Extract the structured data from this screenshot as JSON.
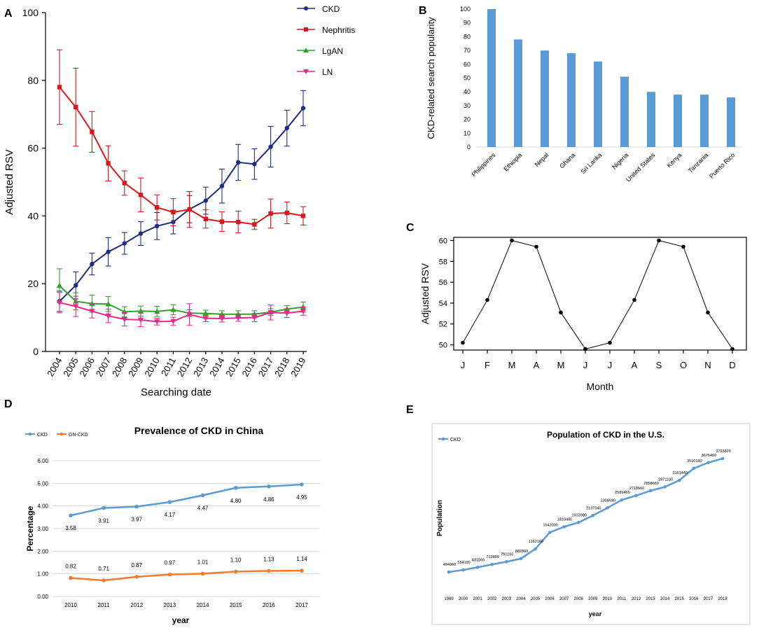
{
  "chart_data": [
    {
      "panel": "A",
      "type": "line",
      "title": "",
      "xlabel": "Searching date",
      "ylabel": "Adjusted RSV",
      "ylim": [
        0,
        100
      ],
      "yticks": [
        "0",
        "20",
        "40",
        "60",
        "80",
        "100"
      ],
      "categories": [
        "2004",
        "2005",
        "2006",
        "2007",
        "2008",
        "2009",
        "2010",
        "2011",
        "2012",
        "2013",
        "2014",
        "2015",
        "2016",
        "2017",
        "2018",
        "2019"
      ],
      "series": [
        {
          "name": "CKD",
          "color": "#1f2d80",
          "marker": "circle",
          "values": [
            14.8,
            19.5,
            25.8,
            29.4,
            31.9,
            34.8,
            37.0,
            38.2,
            42.0,
            44.5,
            48.8,
            55.8,
            55.3,
            60.4,
            65.9,
            71.8
          ],
          "errors": [
            3,
            4,
            3.2,
            4.2,
            3.2,
            3.5,
            4,
            3.5,
            4,
            4,
            5,
            5.3,
            4.5,
            6,
            5.3,
            5.2
          ]
        },
        {
          "name": "Nephritis",
          "color": "#d7191c",
          "marker": "square",
          "values": [
            78.0,
            72.1,
            64.8,
            55.5,
            49.7,
            46.2,
            42.5,
            41.1,
            41.9,
            39.1,
            38.3,
            38.2,
            37.5,
            40.7,
            40.9,
            40.0
          ],
          "errors": [
            11,
            11.5,
            6,
            5.2,
            3.6,
            5,
            3.7,
            4,
            5.3,
            2.7,
            2.9,
            3.2,
            1.5,
            4.3,
            3.2,
            2.7
          ]
        },
        {
          "name": "LgAN",
          "color": "#33a02c",
          "marker": "triangle-up",
          "values": [
            19.4,
            14.8,
            14.1,
            14.0,
            11.7,
            11.9,
            11.8,
            12.3,
            11.3,
            11.2,
            11.0,
            11.0,
            11.0,
            11.6,
            12.5,
            13.1
          ],
          "errors": [
            5,
            2.5,
            2.5,
            2.2,
            1.5,
            1.5,
            1.5,
            1.5,
            1,
            1,
            1,
            1,
            1,
            1,
            1,
            1.5
          ]
        },
        {
          "name": "LN",
          "color": "#e7298a",
          "marker": "triangle-down",
          "values": [
            14.4,
            13.3,
            11.9,
            10.5,
            9.5,
            9.3,
            8.8,
            8.9,
            10.9,
            9.8,
            9.7,
            9.9,
            10.0,
            11.5,
            11.3,
            11.9
          ],
          "errors": [
            3,
            3,
            2,
            2,
            2,
            2,
            1,
            1.2,
            3.2,
            1,
            1,
            1,
            1.2,
            2.2,
            1.3,
            1.2
          ]
        }
      ]
    },
    {
      "panel": "B",
      "type": "bar",
      "title": "",
      "xlabel": "",
      "ylabel": "CKD-related search popularity",
      "ylim": [
        0,
        100
      ],
      "yticks": [
        "0",
        "10",
        "20",
        "30",
        "40",
        "50",
        "60",
        "70",
        "80",
        "90",
        "100"
      ],
      "categories": [
        "Philippines",
        "Ethiopia",
        "Nepal",
        "Ghana",
        "Sri Lanka",
        "Nigeria",
        "United States",
        "Kenya",
        "Tanzania",
        "Puerto Rico"
      ],
      "values": [
        100,
        78,
        70,
        68,
        62,
        51,
        40,
        38,
        38,
        36
      ],
      "color": "#5b9bd5"
    },
    {
      "panel": "C",
      "type": "line",
      "title": "",
      "xlabel": "Month",
      "ylabel": "Adjusted RSV",
      "ylim": [
        49.5,
        60.3
      ],
      "yticks": [
        50,
        52,
        54,
        56,
        58,
        60
      ],
      "categories": [
        "J",
        "F",
        "M",
        "A",
        "M",
        "J",
        "J",
        "A",
        "S",
        "O",
        "N",
        "D"
      ],
      "values": [
        50.2,
        54.3,
        60.0,
        59.4,
        53.1,
        49.6,
        50.2,
        54.3,
        60.0,
        59.4,
        53.1,
        49.6
      ]
    },
    {
      "panel": "D",
      "type": "line",
      "title": "Prevalence of CKD in China",
      "xlabel": "year",
      "ylabel": "Percentage",
      "ylim": [
        0,
        6
      ],
      "yticks": [
        "0.00",
        "1.00",
        "2.00",
        "3.00",
        "4.00",
        "5.00",
        "6.00"
      ],
      "categories": [
        "2010",
        "2011",
        "2012",
        "2013",
        "2014",
        "2015",
        "2016",
        "2017"
      ],
      "series": [
        {
          "name": "CKD",
          "color": "#5b9bd5",
          "values": [
            3.58,
            3.91,
            3.97,
            4.17,
            4.47,
            4.8,
            4.86,
            4.95
          ],
          "labels": [
            "3.58",
            "3.91",
            "3.97",
            "4.17",
            "4.47",
            "4.80",
            "4.86",
            "4.95"
          ]
        },
        {
          "name": "GN-CKD",
          "color": "#ed7d31",
          "values": [
            0.82,
            0.71,
            0.87,
            0.97,
            1.01,
            1.1,
            1.13,
            1.14
          ],
          "labels": [
            "0.82",
            "0.71",
            "0.87",
            "0.97",
            "1.01",
            "1.10",
            "1.13",
            "1.14"
          ]
        }
      ]
    },
    {
      "panel": "E",
      "type": "line",
      "title": "Population of CKD in the U.S.",
      "xlabel": "year",
      "ylabel": "Population",
      "categories": [
        "1999",
        "2000",
        "2001",
        "2002",
        "2003",
        "2004",
        "2005",
        "2006",
        "2007",
        "2008",
        "2009",
        "2010",
        "2011",
        "2012",
        "2013",
        "2014",
        "2015",
        "2016",
        "2017",
        "2018"
      ],
      "series": [
        {
          "name": "CKD",
          "color": "#5b9bd5",
          "values": [
            494060,
            554100,
            631060,
            713800,
            792260,
            882960,
            1162160,
            1643000,
            1810450,
            1933980,
            2137540,
            2358580,
            2589460,
            2718660,
            2858660,
            2971100,
            3161440,
            3510180,
            3676460,
            3793820
          ],
          "labels": [
            "494060",
            "554100",
            "631060",
            "713800",
            "792260",
            "882960",
            "1162160",
            "1643000",
            "1810450",
            "1933980",
            "2137540",
            "2358580",
            "2589460",
            "2718660",
            "2858660",
            "2971100",
            "3161440",
            "3510180",
            "3676460",
            "3793820"
          ]
        }
      ]
    }
  ]
}
